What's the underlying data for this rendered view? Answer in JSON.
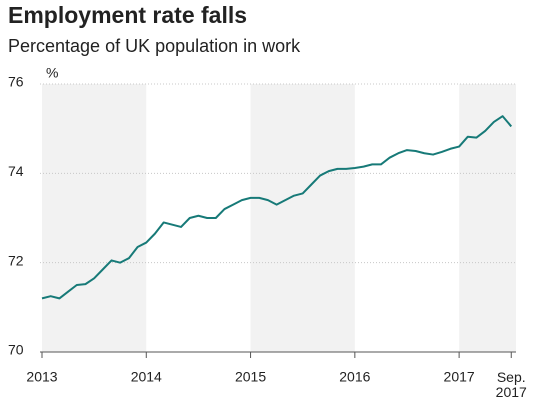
{
  "chart_data": {
    "type": "line",
    "title": "Employment rate falls",
    "subtitle": "Percentage of UK population in work",
    "y_unit": "%",
    "categories": [
      "2013",
      null,
      null,
      null,
      null,
      null,
      null,
      null,
      null,
      null,
      null,
      null,
      "2014",
      null,
      null,
      null,
      null,
      null,
      null,
      null,
      null,
      null,
      null,
      null,
      "2015",
      null,
      null,
      null,
      null,
      null,
      null,
      null,
      null,
      null,
      null,
      null,
      "2016",
      null,
      null,
      null,
      null,
      null,
      null,
      null,
      null,
      null,
      null,
      null,
      "2017",
      null,
      null,
      null,
      null,
      null,
      "Sep. 2017"
    ],
    "series": [
      {
        "color": "#177a78",
        "values": [
          71.2,
          71.25,
          71.2,
          71.35,
          71.5,
          71.52,
          71.65,
          71.85,
          72.05,
          72.0,
          72.1,
          72.35,
          72.45,
          72.65,
          72.9,
          72.85,
          72.8,
          73.0,
          73.05,
          73.0,
          73.0,
          73.2,
          73.3,
          73.4,
          73.45,
          73.45,
          73.4,
          73.3,
          73.4,
          73.5,
          73.55,
          73.75,
          73.95,
          74.05,
          74.1,
          74.1,
          74.12,
          74.15,
          74.2,
          74.2,
          74.35,
          74.45,
          74.52,
          74.5,
          74.45,
          74.42,
          74.48,
          74.55,
          74.6,
          74.82,
          74.8,
          74.95,
          75.15,
          75.28,
          75.05
        ]
      }
    ],
    "ylim": [
      70,
      76
    ],
    "yticks": [
      70,
      72,
      74,
      76
    ],
    "grid": true
  }
}
